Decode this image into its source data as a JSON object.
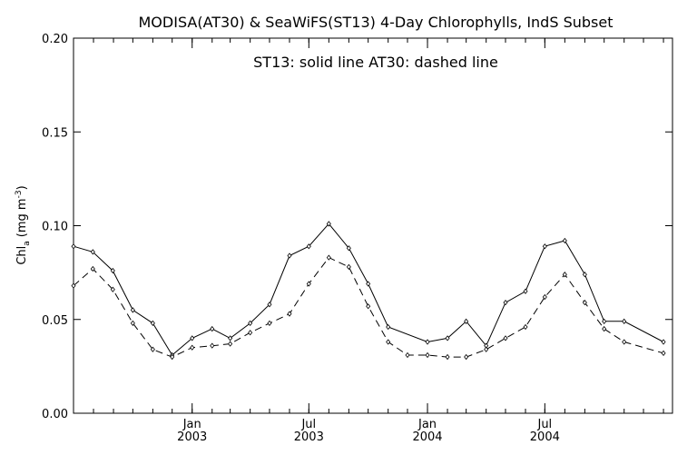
{
  "chart_data": {
    "type": "line",
    "title": "MODISA(AT30) & SeaWiFS(ST13) 4-Day Chlorophylls, IndS Subset",
    "annotation": "ST13: solid line   AT30: dashed line",
    "ylabel": "Chl",
    "ylabel_sub": "a",
    "ylabel_units_open": "(mg m",
    "ylabel_units_sup": "-3",
    "ylabel_units_close": ")",
    "ylim": [
      0.0,
      0.2
    ],
    "yticks": [
      {
        "value": 0.0,
        "label": "0.00"
      },
      {
        "value": 0.05,
        "label": "0.05"
      },
      {
        "value": 0.1,
        "label": "0.10"
      },
      {
        "value": 0.15,
        "label": "0.15"
      },
      {
        "value": 0.2,
        "label": "0.20"
      }
    ],
    "xlim": [
      "2002-07-01",
      "2005-01-15"
    ],
    "xticks": [
      {
        "date": "2003-01-01",
        "month": "Jan",
        "year": "2003"
      },
      {
        "date": "2003-07-01",
        "month": "Jul",
        "year": "2003"
      },
      {
        "date": "2004-01-01",
        "month": "Jan",
        "year": "2004"
      },
      {
        "date": "2004-07-01",
        "month": "Jul",
        "year": "2004"
      }
    ],
    "minor_ticks_per_month": true,
    "grid": false,
    "series": [
      {
        "name": "ST13",
        "style": "solid",
        "points": [
          [
            "2002-07-01",
            0.089
          ],
          [
            "2002-07-31",
            0.086
          ],
          [
            "2002-08-31",
            0.076
          ],
          [
            "2002-10-01",
            0.055
          ],
          [
            "2002-11-01",
            0.048
          ],
          [
            "2002-12-01",
            0.031
          ],
          [
            "2003-01-01",
            0.04
          ],
          [
            "2003-02-01",
            0.045
          ],
          [
            "2003-03-01",
            0.04
          ],
          [
            "2003-04-01",
            0.048
          ],
          [
            "2003-05-01",
            0.058
          ],
          [
            "2003-06-01",
            0.084
          ],
          [
            "2003-07-01",
            0.089
          ],
          [
            "2003-08-01",
            0.101
          ],
          [
            "2003-09-01",
            0.088
          ],
          [
            "2003-10-01",
            0.069
          ],
          [
            "2003-11-01",
            0.046
          ],
          [
            "2004-01-01",
            0.038
          ],
          [
            "2004-02-01",
            0.04
          ],
          [
            "2004-03-01",
            0.049
          ],
          [
            "2004-04-01",
            0.036
          ],
          [
            "2004-05-01",
            0.059
          ],
          [
            "2004-06-01",
            0.065
          ],
          [
            "2004-07-01",
            0.089
          ],
          [
            "2004-08-01",
            0.092
          ],
          [
            "2004-09-01",
            0.074
          ],
          [
            "2004-10-01",
            0.049
          ],
          [
            "2004-11-01",
            0.049
          ],
          [
            "2005-01-01",
            0.038
          ]
        ]
      },
      {
        "name": "AT30",
        "style": "dashed",
        "points": [
          [
            "2002-07-01",
            0.068
          ],
          [
            "2002-07-31",
            0.077
          ],
          [
            "2002-08-31",
            0.066
          ],
          [
            "2002-10-01",
            0.048
          ],
          [
            "2002-11-01",
            0.034
          ],
          [
            "2002-12-01",
            0.03
          ],
          [
            "2003-01-01",
            0.035
          ],
          [
            "2003-02-01",
            0.036
          ],
          [
            "2003-03-01",
            0.037
          ],
          [
            "2003-04-01",
            0.043
          ],
          [
            "2003-05-01",
            0.048
          ],
          [
            "2003-06-01",
            0.053
          ],
          [
            "2003-07-01",
            0.069
          ],
          [
            "2003-08-01",
            0.083
          ],
          [
            "2003-09-01",
            0.078
          ],
          [
            "2003-10-01",
            0.057
          ],
          [
            "2003-11-01",
            0.038
          ],
          [
            "2003-12-01",
            0.031
          ],
          [
            "2004-01-01",
            0.031
          ],
          [
            "2004-02-01",
            0.03
          ],
          [
            "2004-03-01",
            0.03
          ],
          [
            "2004-04-01",
            0.034
          ],
          [
            "2004-05-01",
            0.04
          ],
          [
            "2004-06-01",
            0.046
          ],
          [
            "2004-07-01",
            0.062
          ],
          [
            "2004-08-01",
            0.074
          ],
          [
            "2004-09-01",
            0.059
          ],
          [
            "2004-10-01",
            0.045
          ],
          [
            "2004-11-01",
            0.038
          ],
          [
            "2005-01-01",
            0.032
          ]
        ]
      }
    ]
  }
}
